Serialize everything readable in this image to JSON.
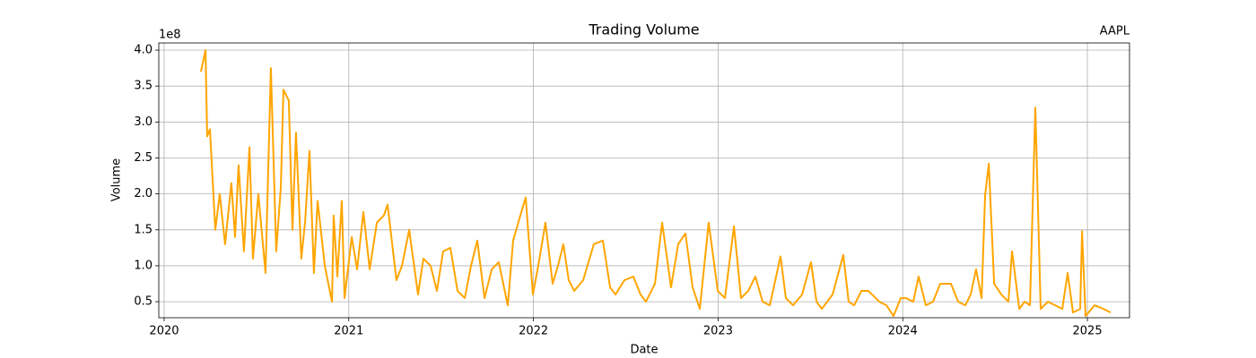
{
  "chart_data": {
    "type": "line",
    "title": "Trading Volume",
    "title_right": "AAPL",
    "x_label": "Date",
    "y_label": "Volume",
    "y_offset_label": "1e8",
    "color": "#ffa500",
    "grid": true,
    "xlim": [
      2019.971,
      2025.228
    ],
    "xticks": [
      2020,
      2021,
      2022,
      2023,
      2024,
      2025
    ],
    "ylim": [
      0.277,
      4.1
    ],
    "yticks": [
      0.5,
      {
        "value": 1.0,
        "label": "1.0"
      },
      1.5,
      {
        "value": 2.0,
        "label": "2.0"
      },
      2.5,
      {
        "value": 3.0,
        "label": "3.0"
      },
      3.5,
      {
        "value": 4.0,
        "label": "4.0"
      }
    ],
    "x": [
      2020.199,
      2020.224,
      2020.233,
      2020.248,
      2020.277,
      2020.301,
      2020.33,
      2020.364,
      2020.384,
      2020.403,
      2020.432,
      2020.462,
      2020.481,
      2020.51,
      2020.549,
      2020.578,
      2020.607,
      2020.632,
      2020.646,
      2020.675,
      2020.695,
      2020.714,
      2020.743,
      2020.763,
      2020.787,
      2020.811,
      2020.831,
      2020.87,
      2020.909,
      2020.918,
      2020.938,
      2020.962,
      2020.977,
      2021.016,
      2021.045,
      2021.079,
      2021.113,
      2021.152,
      2021.19,
      2021.21,
      2021.258,
      2021.288,
      2021.327,
      2021.375,
      2021.404,
      2021.443,
      2021.477,
      2021.511,
      2021.55,
      2021.589,
      2021.628,
      2021.662,
      2021.696,
      2021.735,
      2021.774,
      2021.812,
      2021.861,
      2021.89,
      2021.929,
      2021.958,
      2021.997,
      2022.026,
      2022.065,
      2022.104,
      2022.133,
      2022.162,
      2022.191,
      2022.221,
      2022.269,
      2022.327,
      2022.376,
      2022.415,
      2022.444,
      2022.493,
      2022.541,
      2022.58,
      2022.609,
      2022.658,
      2022.697,
      2022.745,
      2022.784,
      2022.823,
      2022.862,
      2022.901,
      2022.949,
      2022.998,
      2023.037,
      2023.086,
      2023.124,
      2023.163,
      2023.202,
      2023.241,
      2023.28,
      2023.338,
      2023.367,
      2023.406,
      2023.455,
      2023.503,
      2023.533,
      2023.562,
      2023.62,
      2023.678,
      2023.707,
      2023.737,
      2023.776,
      2023.814,
      2023.873,
      2023.912,
      2023.95,
      2023.989,
      2024.018,
      2024.057,
      2024.086,
      2024.125,
      2024.164,
      2024.203,
      2024.261,
      2024.3,
      2024.339,
      2024.368,
      2024.397,
      2024.427,
      2024.446,
      2024.466,
      2024.495,
      2024.534,
      2024.572,
      2024.592,
      2024.631,
      2024.66,
      2024.689,
      2024.718,
      2024.747,
      2024.786,
      2024.825,
      2024.864,
      2024.893,
      2024.922,
      2024.961,
      2024.971,
      2024.99,
      2025.039,
      2025.087,
      2025.126
    ],
    "values": [
      3.7,
      4.0,
      2.8,
      2.9,
      1.5,
      2.0,
      1.3,
      2.15,
      1.4,
      2.4,
      1.2,
      2.65,
      1.1,
      2.0,
      0.9,
      3.75,
      1.2,
      2.1,
      3.45,
      3.3,
      1.5,
      2.85,
      1.1,
      1.6,
      2.6,
      0.9,
      1.9,
      1.0,
      0.5,
      1.7,
      0.85,
      1.9,
      0.55,
      1.4,
      0.95,
      1.75,
      0.95,
      1.6,
      1.7,
      1.85,
      0.8,
      1.0,
      1.5,
      0.6,
      1.1,
      1.0,
      0.65,
      1.2,
      1.25,
      0.65,
      0.55,
      1.0,
      1.35,
      0.55,
      0.95,
      1.05,
      0.45,
      1.35,
      1.7,
      1.95,
      0.6,
      1.0,
      1.6,
      0.75,
      1.0,
      1.3,
      0.8,
      0.65,
      0.8,
      1.3,
      1.35,
      0.7,
      0.6,
      0.8,
      0.85,
      0.6,
      0.5,
      0.75,
      1.6,
      0.7,
      1.3,
      1.45,
      0.7,
      0.4,
      1.6,
      0.65,
      0.55,
      1.55,
      0.55,
      0.65,
      0.85,
      0.5,
      0.45,
      1.13,
      0.55,
      0.45,
      0.6,
      1.05,
      0.5,
      0.4,
      0.6,
      1.15,
      0.5,
      0.45,
      0.65,
      0.65,
      0.5,
      0.45,
      0.3,
      0.55,
      0.55,
      0.5,
      0.85,
      0.45,
      0.5,
      0.75,
      0.75,
      0.5,
      0.45,
      0.6,
      0.95,
      0.55,
      1.98,
      2.42,
      0.75,
      0.6,
      0.5,
      1.2,
      0.4,
      0.5,
      0.45,
      3.2,
      0.4,
      0.5,
      0.45,
      0.4,
      0.9,
      0.35,
      0.4,
      1.48,
      0.3,
      0.45,
      0.4,
      0.35
    ]
  }
}
